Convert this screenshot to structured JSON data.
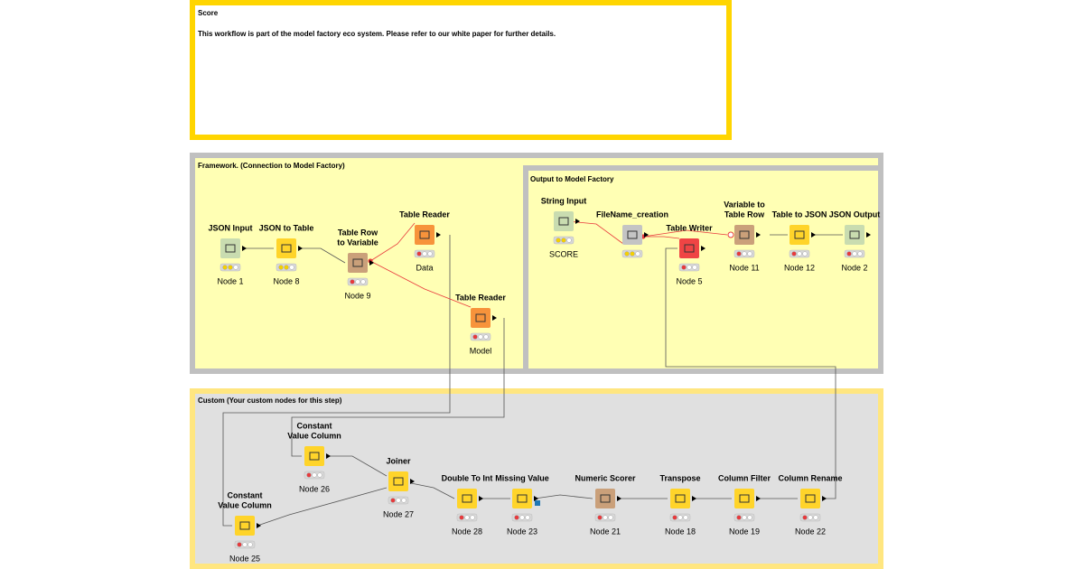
{
  "annotations": [
    {
      "title": "Score",
      "text": "This workflow is part of the model factory eco system. Please refer to our white paper for further details."
    },
    {
      "title": "Framework. (Connection to Model Factory)"
    },
    {
      "title": "Output to Model Factory"
    },
    {
      "title": "Custom (Your custom nodes for this step)"
    }
  ],
  "nodes": [
    {
      "title": [
        "JSON Input"
      ],
      "label": "Node 1"
    },
    {
      "title": [
        "JSON to Table"
      ],
      "label": "Node 8"
    },
    {
      "title": [
        "Table Row",
        "to Variable"
      ],
      "label": "Node 9"
    },
    {
      "title": [
        "Table Reader"
      ],
      "label": "Data"
    },
    {
      "title": [
        "Table Reader"
      ],
      "label": "Model"
    },
    {
      "title": [
        "String Input"
      ],
      "label": "SCORE"
    },
    {
      "title": [
        "FileName_creation"
      ]
    },
    {
      "title": [
        "Table Writer"
      ],
      "label": "Node 5"
    },
    {
      "title": [
        "Variable to",
        "Table Row"
      ],
      "label": "Node 11"
    },
    {
      "title": [
        "Table to JSON"
      ],
      "label": "Node 12"
    },
    {
      "title": [
        "JSON Output"
      ],
      "label": "Node 2"
    },
    {
      "title": [
        "Constant",
        "Value Column"
      ],
      "label": "Node 26"
    },
    {
      "title": [
        "Constant",
        "Value Column"
      ],
      "label": "Node 25"
    },
    {
      "title": [
        "Joiner"
      ],
      "label": "Node 27"
    },
    {
      "title": [
        "Double To Int"
      ],
      "label": "Node 28"
    },
    {
      "title": [
        "Missing Value"
      ],
      "label": "Node 23"
    },
    {
      "title": [
        "Numeric Scorer"
      ],
      "label": "Node 21"
    },
    {
      "title": [
        "Transpose"
      ],
      "label": "Node 18"
    },
    {
      "title": [
        "Column Filter"
      ],
      "label": "Node 19"
    },
    {
      "title": [
        "Column Rename"
      ],
      "label": "Node 22"
    }
  ]
}
